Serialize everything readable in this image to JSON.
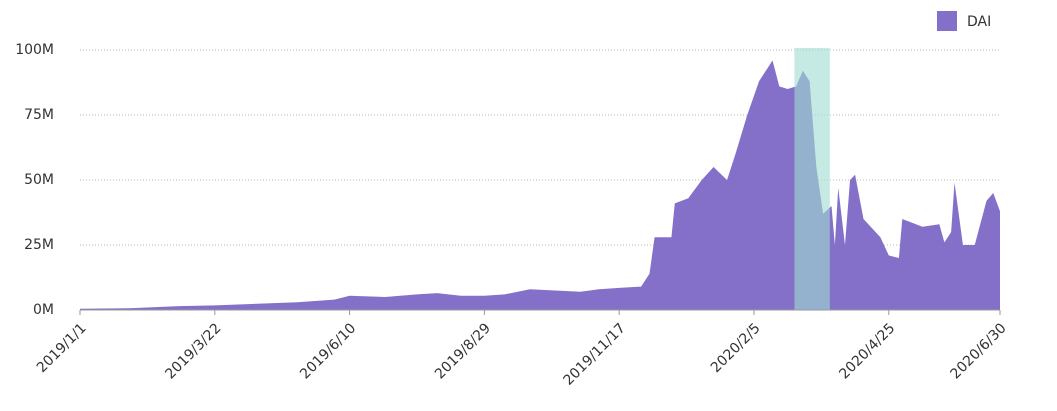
{
  "chart_data": {
    "type": "area",
    "x": [
      "2019/1/1",
      "2019/2/1",
      "2019/3/1",
      "2019/3/22",
      "2019/4/20",
      "2019/5/10",
      "2019/6/1",
      "2019/6/10",
      "2019/7/1",
      "2019/7/20",
      "2019/8/1",
      "2019/8/15",
      "2019/8/29",
      "2019/9/10",
      "2019/9/25",
      "2019/10/10",
      "2019/10/25",
      "2019/11/5",
      "2019/11/17",
      "2019/11/30",
      "2019/12/5",
      "2019/12/8",
      "2019/12/18",
      "2019/12/20",
      "2019/12/28",
      "2020/1/5",
      "2020/1/12",
      "2020/1/20",
      "2020/1/25",
      "2020/2/1",
      "2020/2/8",
      "2020/2/13",
      "2020/2/16",
      "2020/2/20",
      "2020/2/25",
      "2020/3/1",
      "2020/3/5",
      "2020/3/9",
      "2020/3/13",
      "2020/3/17",
      "2020/3/22",
      "2020/3/24",
      "2020/3/26",
      "2020/3/30",
      "2020/4/2",
      "2020/4/5",
      "2020/4/10",
      "2020/4/20",
      "2020/4/25",
      "2020/5/1",
      "2020/5/3",
      "2020/5/15",
      "2020/5/25",
      "2020/5/28",
      "2020/6/1",
      "2020/6/3",
      "2020/6/8",
      "2020/6/15",
      "2020/6/22",
      "2020/6/26",
      "2020/6/30"
    ],
    "series": [
      {
        "name": "DAI",
        "color": "#8470c8",
        "values": [
          0.5,
          0.7,
          1.5,
          1.8,
          2.5,
          3,
          4,
          5.5,
          5,
          6,
          6.5,
          5.5,
          5.5,
          6,
          8,
          7.5,
          7,
          8,
          8.5,
          9,
          14,
          28,
          28,
          41,
          43,
          50,
          55,
          50,
          60,
          75,
          88,
          93,
          96,
          86,
          85,
          86,
          92,
          88,
          55,
          37,
          40,
          25,
          47,
          25,
          50,
          52,
          35,
          28,
          21,
          20,
          35,
          32,
          33,
          26,
          30,
          49,
          25,
          25,
          42,
          45,
          38
        ]
      }
    ],
    "highlight": [
      "2020/2/29",
      "2020/3/21"
    ],
    "xlim": [
      "2019/1/1",
      "2020/6/30"
    ],
    "xticks": [
      "2019/1/1",
      "2019/3/22",
      "2019/6/10",
      "2019/8/29",
      "2019/11/17",
      "2020/2/5",
      "2020/4/25",
      "2020/6/30"
    ],
    "ylim": [
      0,
      100
    ],
    "yticks": [
      {
        "value": 0,
        "label": "0M"
      },
      {
        "value": 25,
        "label": "25M"
      },
      {
        "value": 50,
        "label": "50M"
      },
      {
        "value": 75,
        "label": "75M"
      },
      {
        "value": 100,
        "label": "100M"
      }
    ],
    "grid": true,
    "legend": "top-right"
  }
}
